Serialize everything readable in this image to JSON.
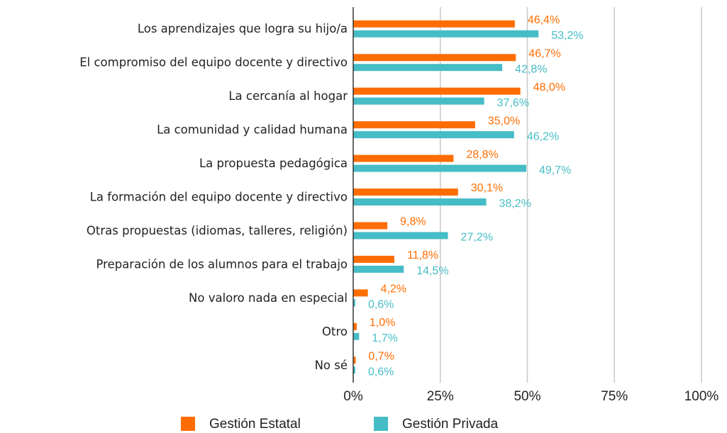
{
  "chart_data": {
    "type": "barh",
    "categories": [
      "Los aprendizajes que logra su hijo/a",
      "El compromiso del equipo docente y directivo",
      "La cercanía al hogar",
      "La comunidad y calidad humana",
      "La propuesta pedagógica",
      "La formación del equipo docente y directivo",
      "Otras propuestas (idiomas, talleres, religión)",
      "Preparación de los alumnos para el trabajo",
      "No valoro nada en especial",
      "Otro",
      "No sé"
    ],
    "series": [
      {
        "name": "Gestión Estatal",
        "color": "#ff6d01",
        "values": [
          46.4,
          46.7,
          48.0,
          35.0,
          28.8,
          30.1,
          9.8,
          11.8,
          4.2,
          1.0,
          0.7
        ],
        "value_labels": [
          "46,4%",
          "46,7%",
          "48,0%",
          "35,0%",
          "28,8%",
          "30,1%",
          "9,8%",
          "11,8%",
          "4,2%",
          "1,0%",
          "0,7%"
        ]
      },
      {
        "name": "Gestión Privada",
        "color": "#46bdc6",
        "values": [
          53.2,
          42.8,
          37.6,
          46.2,
          49.7,
          38.2,
          27.2,
          14.5,
          0.6,
          1.7,
          0.6
        ],
        "value_labels": [
          "53,2%",
          "42,8%",
          "37,6%",
          "46,2%",
          "49,7%",
          "38,2%",
          "27,2%",
          "14,5%",
          "0,6%",
          "1,7%",
          "0,6%"
        ]
      }
    ],
    "xlim": [
      0,
      100
    ],
    "xticks": [
      {
        "value": 0,
        "label": "0%"
      },
      {
        "value": 25,
        "label": "25%"
      },
      {
        "value": 50,
        "label": "50%"
      },
      {
        "value": 75,
        "label": "75%"
      },
      {
        "value": 100,
        "label": "100%"
      }
    ],
    "grid": true,
    "legend": "bottom"
  }
}
